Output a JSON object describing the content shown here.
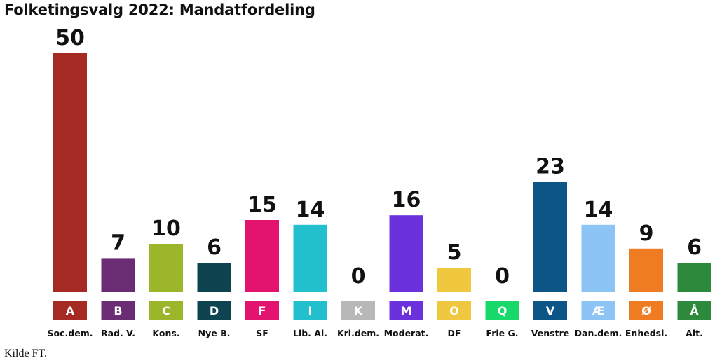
{
  "title": "Folketingsvalg 2022: Mandatfordeling",
  "source": "Kilde FT.",
  "chart_data": {
    "type": "bar",
    "title": "Folketingsvalg 2022: Mandatfordeling",
    "xlabel": "",
    "ylabel": "",
    "ylim": [
      0,
      50
    ],
    "grid": false,
    "legend": "none",
    "categories": [
      "A",
      "B",
      "C",
      "D",
      "F",
      "I",
      "K",
      "M",
      "O",
      "Q",
      "V",
      "Æ",
      "Ø",
      "Å"
    ],
    "party_names": [
      "Soc.dem.",
      "Rad. V.",
      "Kons.",
      "Nye B.",
      "SF",
      "Lib. Al.",
      "Kri.dem.",
      "Moderat.",
      "DF",
      "Frie G.",
      "Venstre",
      "Dan.dem.",
      "Enhedsl.",
      "Alt."
    ],
    "values": [
      50,
      7,
      10,
      6,
      15,
      14,
      0,
      16,
      5,
      0,
      23,
      14,
      9,
      6
    ],
    "colors": [
      "#a52a24",
      "#6a2c72",
      "#9bb62b",
      "#0d4450",
      "#e2146f",
      "#22c0cc",
      "#b8b8b8",
      "#6b31dd",
      "#f0c840",
      "#19d86a",
      "#0d5586",
      "#8cc4f5",
      "#ef7b22",
      "#2d8a3d"
    ]
  }
}
